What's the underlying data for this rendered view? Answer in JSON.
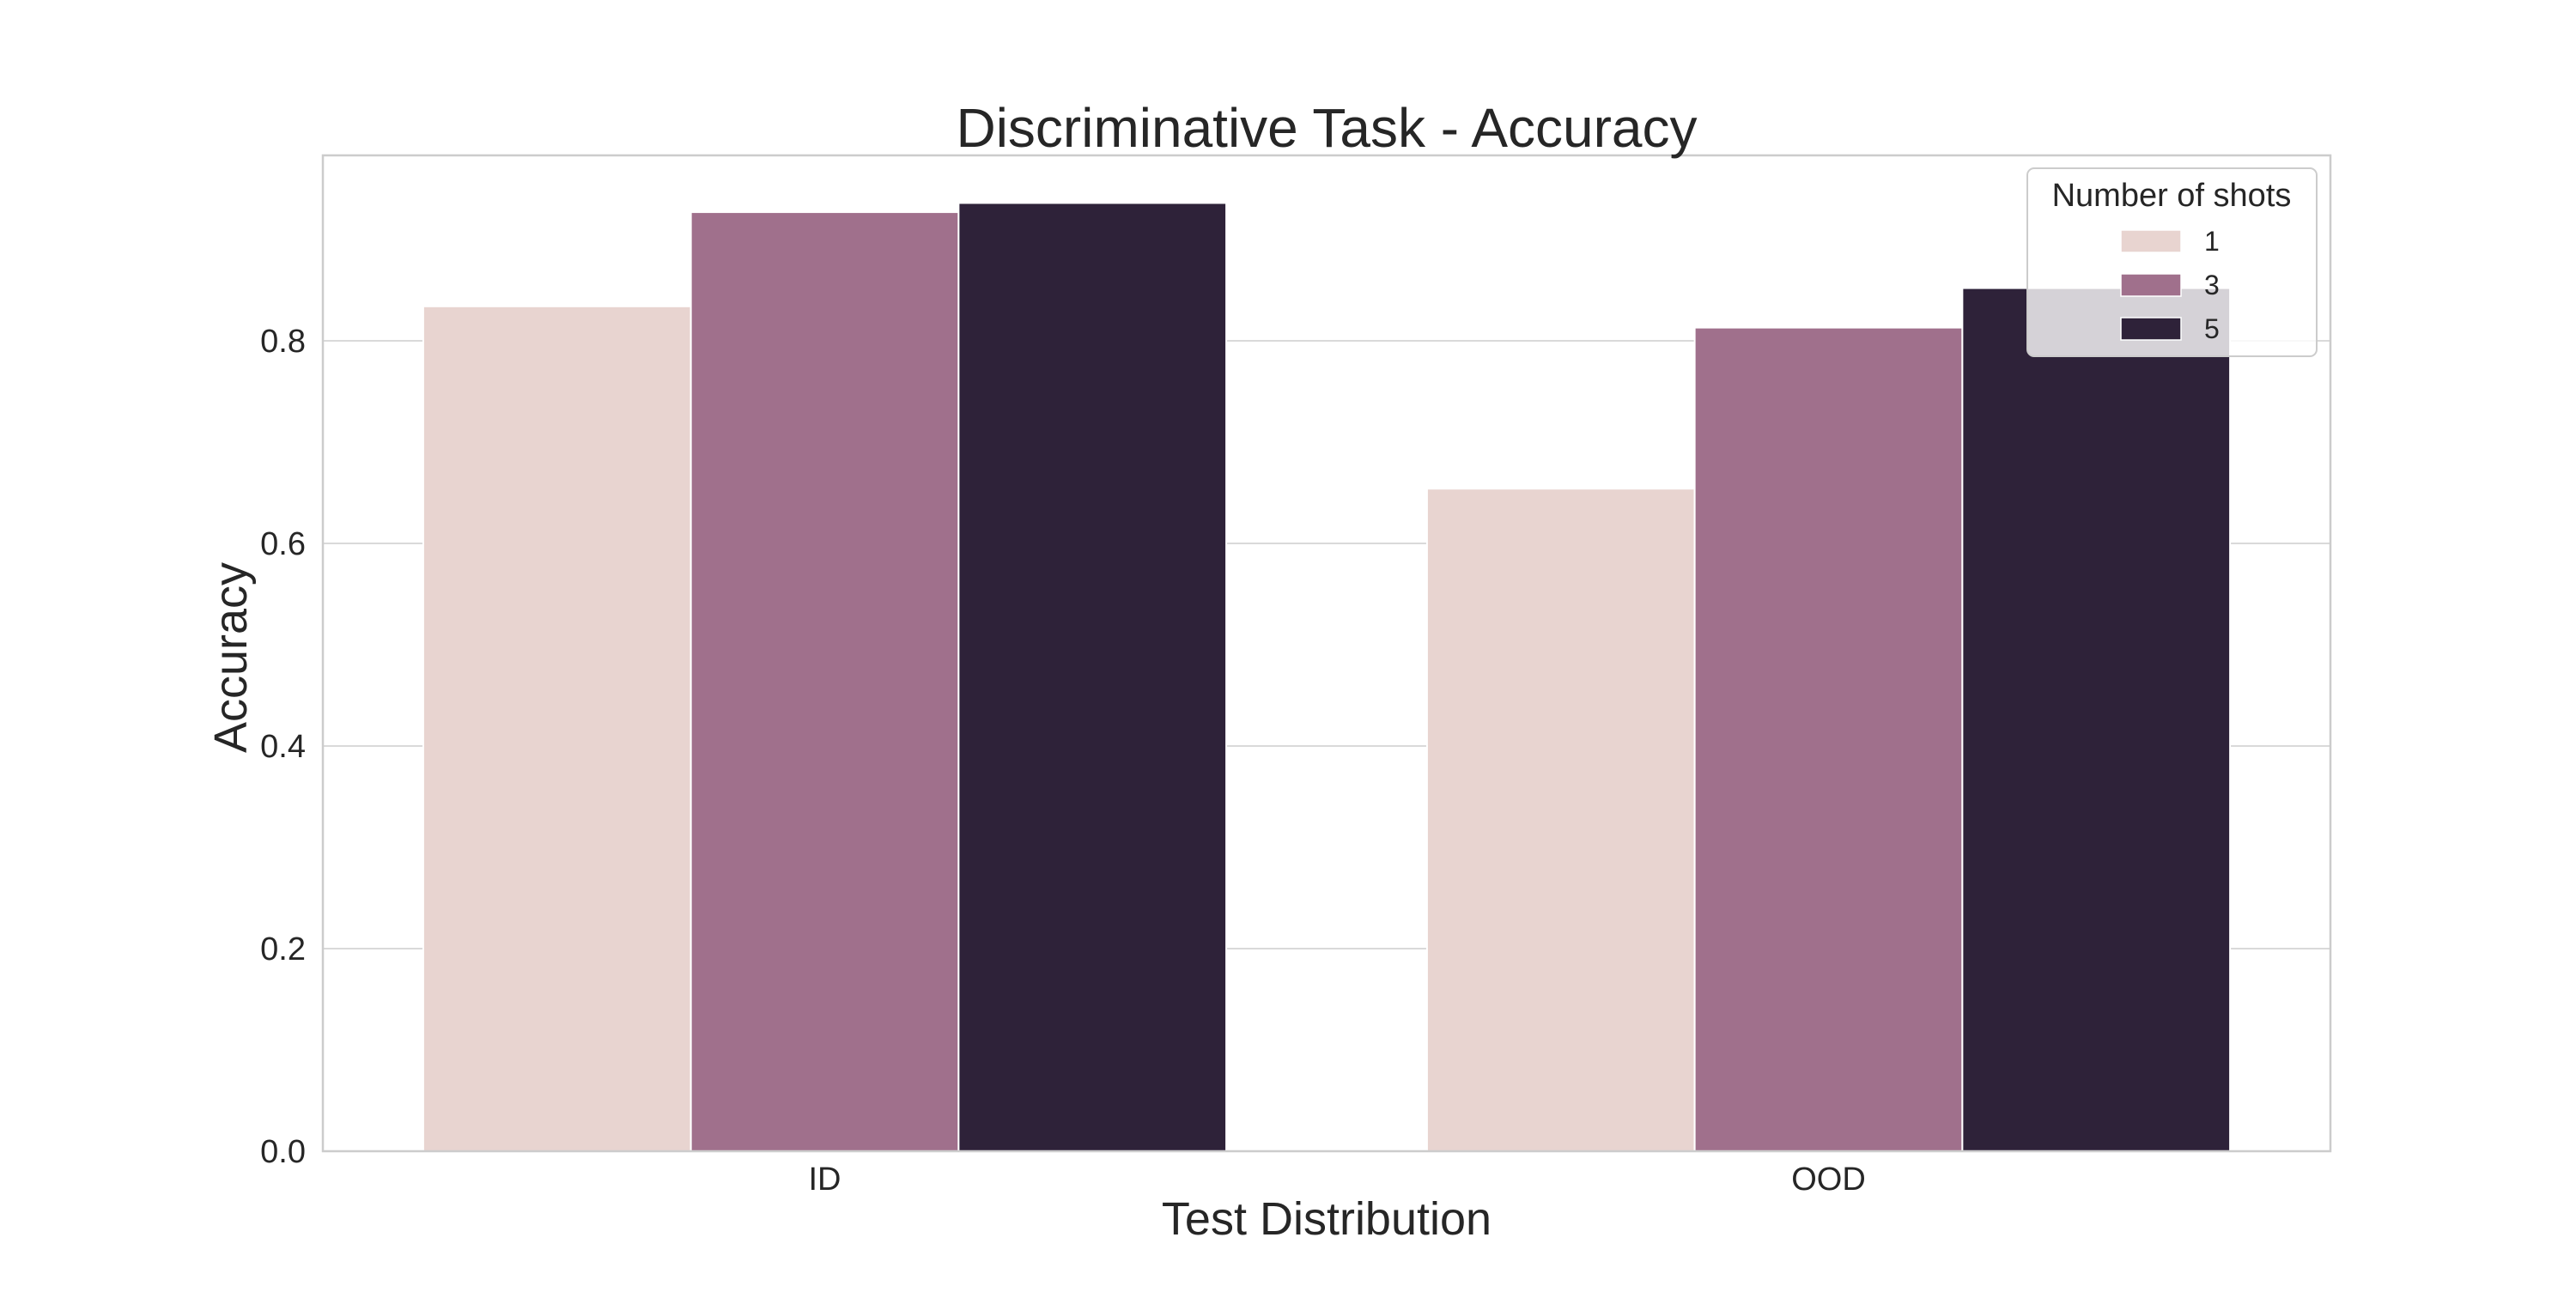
{
  "chart_data": {
    "type": "bar",
    "title": "Discriminative Task - Accuracy",
    "xlabel": "Test Distribution",
    "ylabel": "Accuracy",
    "categories": [
      "ID",
      "OOD"
    ],
    "series": [
      {
        "name": "1",
        "values": [
          0.834,
          0.654
        ],
        "color": "#e8d4d0"
      },
      {
        "name": "3",
        "values": [
          0.927,
          0.813
        ],
        "color": "#a0708c"
      },
      {
        "name": "5",
        "values": [
          0.936,
          0.852
        ],
        "color": "#2e2239"
      }
    ],
    "ylim": [
      0.0,
      0.983
    ],
    "yticks": [
      0.0,
      0.2,
      0.4,
      0.6,
      0.8
    ],
    "ytick_labels": [
      "0.0",
      "0.2",
      "0.4",
      "0.6",
      "0.8"
    ],
    "grid": "horizontal",
    "legend": {
      "title": "Number of shots",
      "placement": "top-right"
    }
  }
}
